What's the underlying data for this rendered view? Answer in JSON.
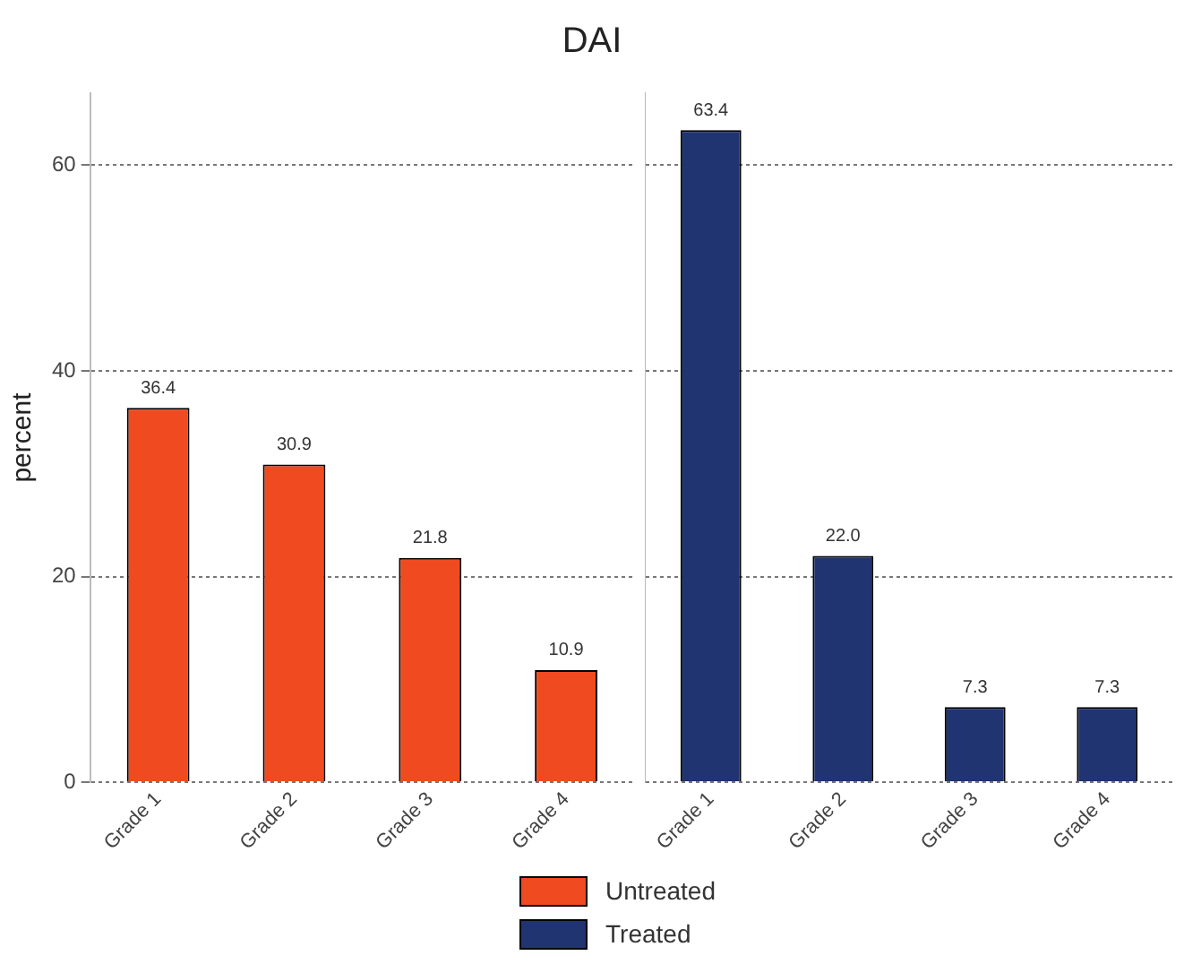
{
  "chart_data": [
    {
      "type": "bar",
      "title": "DAI",
      "ylabel": "percent",
      "categories": [
        "Grade 1",
        "Grade 2",
        "Grade 3",
        "Grade 4"
      ],
      "series": [
        {
          "name": "Untreated",
          "color": "#f04a20",
          "values": [
            36.4,
            30.9,
            21.8,
            10.9
          ],
          "value_labels": [
            "36.4",
            "30.9",
            "21.8",
            "10.9"
          ]
        }
      ],
      "ylim": [
        0,
        67
      ],
      "yticks": [
        0,
        20,
        40,
        60
      ],
      "grid": "y",
      "legend": "bottom"
    },
    {
      "type": "bar",
      "categories": [
        "Grade 1",
        "Grade 2",
        "Grade 3",
        "Grade 4"
      ],
      "series": [
        {
          "name": "Treated",
          "color": "#1f3470",
          "values": [
            63.4,
            22.0,
            7.3,
            7.3
          ],
          "value_labels": [
            "63.4",
            "22.0",
            "7.3",
            "7.3"
          ]
        }
      ],
      "ylim": [
        0,
        67
      ],
      "yticks": [
        0,
        20,
        40,
        60
      ],
      "grid": "y",
      "legend": "bottom",
      "tick_labels": "x"
    }
  ]
}
